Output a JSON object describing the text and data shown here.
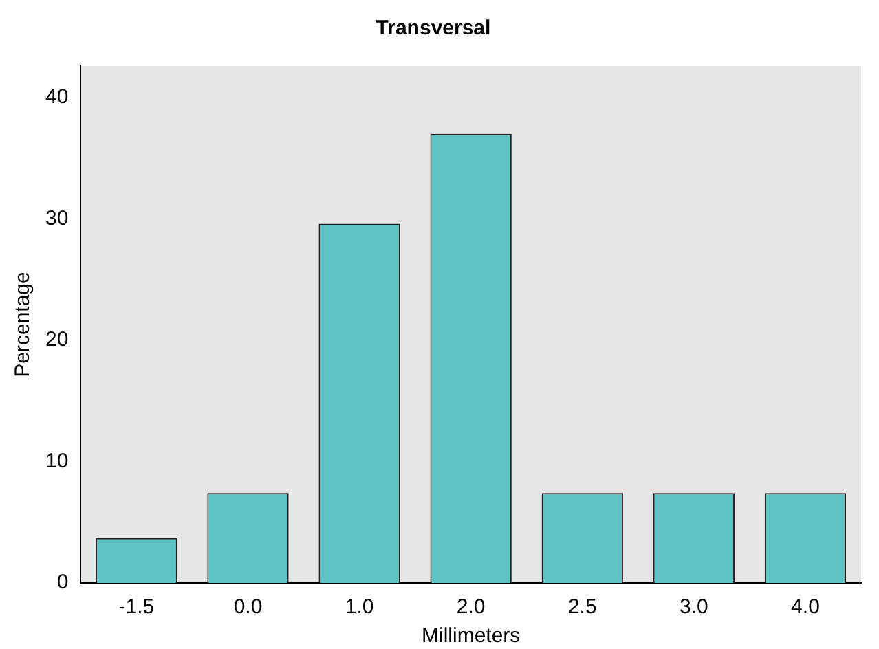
{
  "chart_data": {
    "type": "bar",
    "title": "Transversal",
    "xlabel": "Millimeters",
    "ylabel": "Percentage",
    "categories": [
      "-1.5",
      "0.0",
      "1.0",
      "2.0",
      "2.5",
      "3.0",
      "4.0"
    ],
    "values": [
      3.7,
      7.4,
      29.6,
      37.0,
      7.4,
      7.4,
      7.4
    ],
    "color": "#5fc3c3",
    "ylim": [
      0,
      42.6
    ],
    "yticks": [
      0,
      10,
      20,
      30,
      40
    ],
    "grid": false,
    "legend": false
  }
}
